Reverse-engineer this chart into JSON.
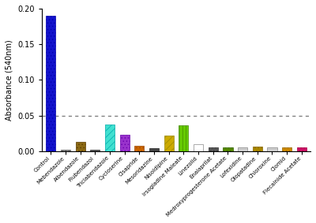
{
  "categories": [
    "Control",
    "Mebendazole",
    "Albendazole",
    "Flubendazol",
    "Triclabendazole",
    "Cycloserine",
    "Cisapride",
    "Mesoridazine",
    "Nisoldipine",
    "Irsogladine Maleate",
    "Linezolid",
    "Enalaprilat",
    "Medroxyprogesterone Acetate",
    "Lofexidine",
    "Olopatadine",
    "Chloroxine",
    "Clomid",
    "Flecainide Acetate"
  ],
  "bar_data": [
    {
      "value": 0.19,
      "facecolor": "#1212cc",
      "hatch": "....",
      "edgecolor": "#0000aa"
    },
    {
      "value": 0.002,
      "facecolor": "#888888",
      "hatch": "....",
      "edgecolor": "#555555"
    },
    {
      "value": 0.013,
      "facecolor": "#8b6914",
      "hatch": "....",
      "edgecolor": "#5a3a00"
    },
    {
      "value": 0.002,
      "facecolor": "#555555",
      "hatch": "",
      "edgecolor": "#333333"
    },
    {
      "value": 0.038,
      "facecolor": "#40e0d0",
      "hatch": "////",
      "edgecolor": "#00aaaa"
    },
    {
      "value": 0.023,
      "facecolor": "#9932cc",
      "hatch": "....",
      "edgecolor": "#6600aa"
    },
    {
      "value": 0.008,
      "facecolor": "#cc6600",
      "hatch": "....",
      "edgecolor": "#994400"
    },
    {
      "value": 0.004,
      "facecolor": "#444444",
      "hatch": "",
      "edgecolor": "#222222"
    },
    {
      "value": 0.022,
      "facecolor": "#ccaa00",
      "hatch": "////",
      "edgecolor": "#998800"
    },
    {
      "value": 0.037,
      "facecolor": "#66cc00",
      "hatch": "||||",
      "edgecolor": "#448800"
    },
    {
      "value": 0.01,
      "facecolor": "#ffffff",
      "hatch": "",
      "edgecolor": "#888888"
    },
    {
      "value": 0.005,
      "facecolor": "#555555",
      "hatch": "....",
      "edgecolor": "#333333"
    },
    {
      "value": 0.006,
      "facecolor": "#558800",
      "hatch": "....",
      "edgecolor": "#336600"
    },
    {
      "value": 0.006,
      "facecolor": "#cccccc",
      "hatch": "",
      "edgecolor": "#888888"
    },
    {
      "value": 0.007,
      "facecolor": "#aa8800",
      "hatch": "....",
      "edgecolor": "#886600"
    },
    {
      "value": 0.005,
      "facecolor": "#cccccc",
      "hatch": "",
      "edgecolor": "#888888"
    },
    {
      "value": 0.006,
      "facecolor": "#cc8800",
      "hatch": "....",
      "edgecolor": "#996600"
    },
    {
      "value": 0.005,
      "facecolor": "#cc1166",
      "hatch": "....",
      "edgecolor": "#aa0044"
    }
  ],
  "ylabel": "Absorbance (540nm)",
  "ylim": [
    0,
    0.2
  ],
  "yticks": [
    0.0,
    0.05,
    0.1,
    0.15,
    0.2
  ],
  "dotted_line_y": 0.05
}
